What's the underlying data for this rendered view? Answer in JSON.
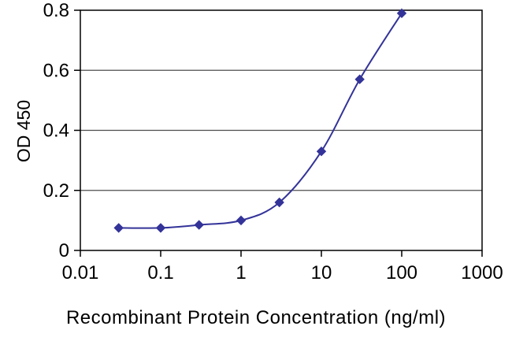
{
  "chart_data": {
    "type": "line",
    "title": "",
    "xlabel": "Recombinant Protein Concentration (ng/ml)",
    "ylabel": "OD 450",
    "x_scale": "log",
    "xlim": [
      0.01,
      1000
    ],
    "ylim": [
      0,
      0.8
    ],
    "x_ticks": [
      0.01,
      0.1,
      1,
      10,
      100,
      1000
    ],
    "x_tick_labels": [
      "0.01",
      "0.1",
      "1",
      "10",
      "100",
      "1000"
    ],
    "y_ticks": [
      0,
      0.2,
      0.4,
      0.6,
      0.8
    ],
    "y_tick_labels": [
      "0",
      "0.2",
      "0.4",
      "0.6",
      "0.8"
    ],
    "grid": "horizontal",
    "legend": "none",
    "series": [
      {
        "name": "OD 450",
        "color": "#333399",
        "marker": "diamond",
        "x": [
          0.03,
          0.1,
          0.3,
          1,
          3,
          10,
          30,
          100
        ],
        "y": [
          0.075,
          0.075,
          0.085,
          0.1,
          0.16,
          0.33,
          0.57,
          0.79
        ]
      }
    ],
    "colors": {
      "line": "#333399",
      "grid": "#4d4d4d",
      "axis": "#000000",
      "background": "#ffffff",
      "text": "#000000"
    }
  }
}
